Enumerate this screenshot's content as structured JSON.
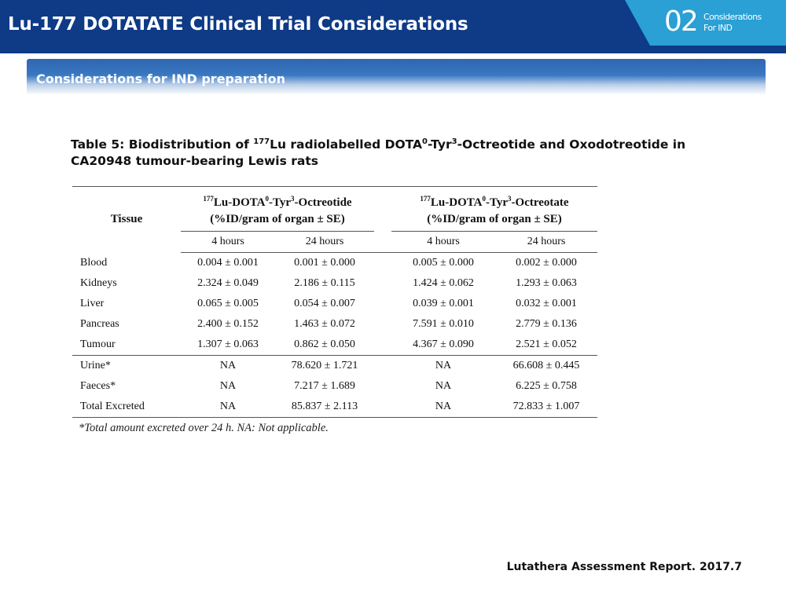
{
  "header": {
    "title": "Lu-177 DOTATATE Clinical Trial Considerations",
    "badge_number": "02",
    "badge_line1": "Considerations",
    "badge_line2": "For IND"
  },
  "section": {
    "title": "Considerations for IND preparation"
  },
  "table": {
    "caption_pre": "Table 5: Biodistribution of ",
    "caption_sup1": "177",
    "caption_mid1": "Lu radiolabelled DOTA",
    "caption_sup2": "0",
    "caption_mid2": "-Tyr",
    "caption_sup3": "3",
    "caption_post": "-Octreotide and Oxodotreotide in CA20948 tumour-bearing Lewis rats",
    "tissue_header": "Tissue",
    "group1": {
      "sup_a": "177",
      "name_a": "Lu-DOTA",
      "sup_b": "0",
      "name_b": "-Tyr",
      "sup_c": "3",
      "name_c": "-Octreotide",
      "unit": "(%ID/gram of organ ± SE)"
    },
    "group2": {
      "sup_a": "177",
      "name_a": "Lu-DOTA",
      "sup_b": "0",
      "name_b": "-Tyr",
      "sup_c": "3",
      "name_c": "-Octreotate",
      "unit": "(%ID/gram of organ ± SE)"
    },
    "subheaders": [
      "4 hours",
      "24 hours",
      "4 hours",
      "24 hours"
    ],
    "rows": [
      {
        "tissue": "Blood",
        "values": [
          "0.004 ± 0.001",
          "0.001 ± 0.000",
          "0.005 ± 0.000",
          "0.002 ± 0.000"
        ]
      },
      {
        "tissue": "Kidneys",
        "values": [
          "2.324 ± 0.049",
          "2.186 ± 0.115",
          "1.424 ± 0.062",
          "1.293 ± 0.063"
        ]
      },
      {
        "tissue": "Liver",
        "values": [
          "0.065 ± 0.005",
          "0.054 ± 0.007",
          "0.039 ± 0.001",
          "0.032 ± 0.001"
        ]
      },
      {
        "tissue": "Pancreas",
        "values": [
          "2.400 ± 0.152",
          "1.463 ± 0.072",
          "7.591 ± 0.010",
          "2.779 ± 0.136"
        ]
      },
      {
        "tissue": "Tumour",
        "values": [
          "1.307 ± 0.063",
          "0.862 ± 0.050",
          "4.367 ± 0.090",
          "2.521 ± 0.052"
        ]
      },
      {
        "tissue": "Urine*",
        "values": [
          "NA",
          "78.620 ± 1.721",
          "NA",
          "66.608 ± 0.445"
        ]
      },
      {
        "tissue": "Faeces*",
        "values": [
          "NA",
          "7.217 ± 1.689",
          "NA",
          "6.225 ± 0.758"
        ]
      },
      {
        "tissue": "Total Excreted",
        "values": [
          "NA",
          "85.837 ± 2.113",
          "NA",
          "72.833 ± 1.007"
        ]
      }
    ],
    "footnote": "*Total amount excreted over 24 h. NA: Not applicable."
  },
  "source": "Lutathera Assessment Report. 2017.7"
}
